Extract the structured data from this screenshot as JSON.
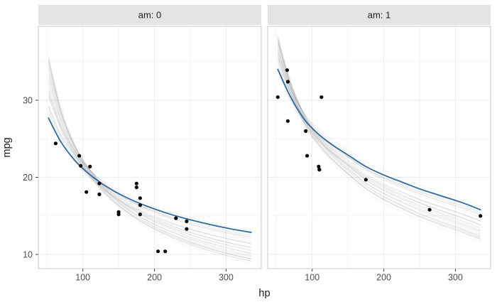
{
  "window": {
    "background": "#ffffff"
  },
  "chart_data": {
    "type": "scatter",
    "title": "",
    "xlabel": "hp",
    "ylabel": "mpg",
    "legend": "none",
    "grid": "on",
    "axes": {
      "xlim": [
        37.85,
        349.15
      ],
      "ylim": [
        8.16,
        39.59
      ],
      "x_ticks": [
        100,
        200,
        300
      ],
      "y_ticks": [
        10,
        20,
        30
      ],
      "x_minor": [
        50,
        150,
        250,
        350
      ],
      "y_minor": [
        15,
        25,
        35
      ]
    },
    "style": {
      "fit_line_color": "#2d6ca3",
      "boot_line_color": "rgba(25,25,25,0.05)",
      "point_color": "#0a0a0a",
      "strip_bg": "#e4e4e4",
      "panel_bg": "#ffffff",
      "panel_border": "#c9c9c9",
      "grid_major": "#ededed",
      "grid_minor": "#f5f5f5",
      "tick_mark_color": "#333333",
      "tick_label_color": "#4d4d4d"
    },
    "facets": [
      {
        "label": "am: 0",
        "points": [
          [
            110,
            21.4
          ],
          [
            175,
            18.7
          ],
          [
            105,
            18.1
          ],
          [
            245,
            14.3
          ],
          [
            62,
            24.4
          ],
          [
            95,
            22.8
          ],
          [
            123,
            19.2
          ],
          [
            123,
            17.8
          ],
          [
            180,
            16.4
          ],
          [
            180,
            17.3
          ],
          [
            180,
            15.2
          ],
          [
            205,
            10.4
          ],
          [
            215,
            10.4
          ],
          [
            230,
            14.7
          ],
          [
            97,
            21.5
          ],
          [
            150,
            15.5
          ],
          [
            150,
            15.2
          ],
          [
            245,
            13.3
          ],
          [
            175,
            19.2
          ]
        ],
        "curve": [
          [
            52,
            27.68
          ],
          [
            70,
            24.5
          ],
          [
            90,
            22.08
          ],
          [
            110,
            20.34
          ],
          [
            135,
            18.69
          ],
          [
            160,
            17.42
          ],
          [
            190,
            16.23
          ],
          [
            220,
            15.28
          ],
          [
            250,
            14.49
          ],
          [
            280,
            13.83
          ],
          [
            310,
            13.26
          ],
          [
            335,
            12.86
          ]
        ],
        "boot": {
          "waist_hp": 115,
          "draws": [
            [
              -0.012,
              0.31
            ],
            [
              0.008,
              0.06
            ],
            [
              -0.025,
              0.24
            ],
            [
              0.018,
              0.13
            ],
            [
              0.002,
              0.29
            ],
            [
              -0.008,
              0.02
            ],
            [
              0.022,
              0.18
            ],
            [
              -0.018,
              0.09
            ],
            [
              0.012,
              0.26
            ],
            [
              -0.002,
              0.32
            ],
            [
              0.025,
              0.04
            ],
            [
              -0.022,
              0.2
            ],
            [
              0.005,
              0.12
            ],
            [
              0.015,
              0.23
            ],
            [
              -0.015,
              0.28
            ],
            [
              0.028,
              0.01
            ],
            [
              -0.005,
              0.15
            ],
            [
              0.01,
              0.3
            ],
            [
              -0.028,
              0.08
            ],
            [
              0.02,
              0.21
            ],
            [
              0.0,
              0.03
            ],
            [
              -0.01,
              0.17
            ],
            [
              0.013,
              0.27
            ],
            [
              -0.02,
              0.33
            ],
            [
              0.024,
              0.11
            ],
            [
              -0.004,
              0.23
            ],
            [
              0.007,
              0.05
            ],
            [
              0.017,
              0.3
            ],
            [
              -0.013,
              0.14
            ],
            [
              0.003,
              0.19
            ],
            [
              -0.024,
              0.27
            ],
            [
              0.026,
              0.09
            ],
            [
              -0.006,
              0.31
            ],
            [
              0.011,
              0.16
            ],
            [
              -0.016,
              0.03
            ],
            [
              0.021,
              0.24
            ]
          ]
        }
      },
      {
        "label": "am: 1",
        "points": [
          [
            110,
            21.0
          ],
          [
            110,
            21.0
          ],
          [
            93,
            22.8
          ],
          [
            66,
            32.4
          ],
          [
            52,
            30.4
          ],
          [
            65,
            33.9
          ],
          [
            66,
            27.3
          ],
          [
            91,
            26.0
          ],
          [
            113,
            30.4
          ],
          [
            264,
            15.8
          ],
          [
            175,
            19.7
          ],
          [
            335,
            15.0
          ],
          [
            109,
            21.4
          ]
        ],
        "curve": [
          [
            52,
            34.0
          ],
          [
            70,
            30.4
          ],
          [
            90,
            27.4
          ],
          [
            110,
            25.5
          ],
          [
            130,
            24.1
          ],
          [
            150,
            22.9
          ],
          [
            175,
            21.4
          ],
          [
            200,
            20.3
          ],
          [
            225,
            19.4
          ],
          [
            250,
            18.5
          ],
          [
            280,
            17.6
          ],
          [
            310,
            16.7
          ],
          [
            335,
            15.8
          ]
        ],
        "boot": {
          "waist_hp": 90,
          "draws": [
            [
              -0.012,
              0.2
            ],
            [
              0.008,
              0.04
            ],
            [
              -0.025,
              0.16
            ],
            [
              0.018,
              0.09
            ],
            [
              0.002,
              0.19
            ],
            [
              -0.008,
              0.01
            ],
            [
              0.022,
              0.12
            ],
            [
              -0.018,
              0.06
            ],
            [
              0.012,
              0.17
            ],
            [
              -0.002,
              0.21
            ],
            [
              0.025,
              0.03
            ],
            [
              -0.022,
              0.13
            ],
            [
              0.005,
              0.08
            ],
            [
              0.015,
              0.15
            ],
            [
              -0.015,
              0.19
            ],
            [
              0.028,
              0.0
            ],
            [
              -0.005,
              0.1
            ],
            [
              0.01,
              0.2
            ],
            [
              -0.028,
              0.05
            ],
            [
              0.02,
              0.14
            ],
            [
              0.0,
              0.02
            ],
            [
              -0.01,
              0.11
            ],
            [
              0.013,
              0.18
            ],
            [
              -0.02,
              0.22
            ],
            [
              0.024,
              0.07
            ],
            [
              -0.004,
              0.15
            ],
            [
              0.007,
              0.03
            ],
            [
              0.017,
              0.2
            ],
            [
              -0.013,
              0.09
            ],
            [
              0.003,
              0.13
            ],
            [
              -0.024,
              0.18
            ],
            [
              0.026,
              0.06
            ],
            [
              -0.006,
              0.21
            ],
            [
              0.011,
              0.11
            ],
            [
              -0.016,
              0.02
            ],
            [
              0.021,
              0.16
            ]
          ]
        }
      }
    ]
  }
}
